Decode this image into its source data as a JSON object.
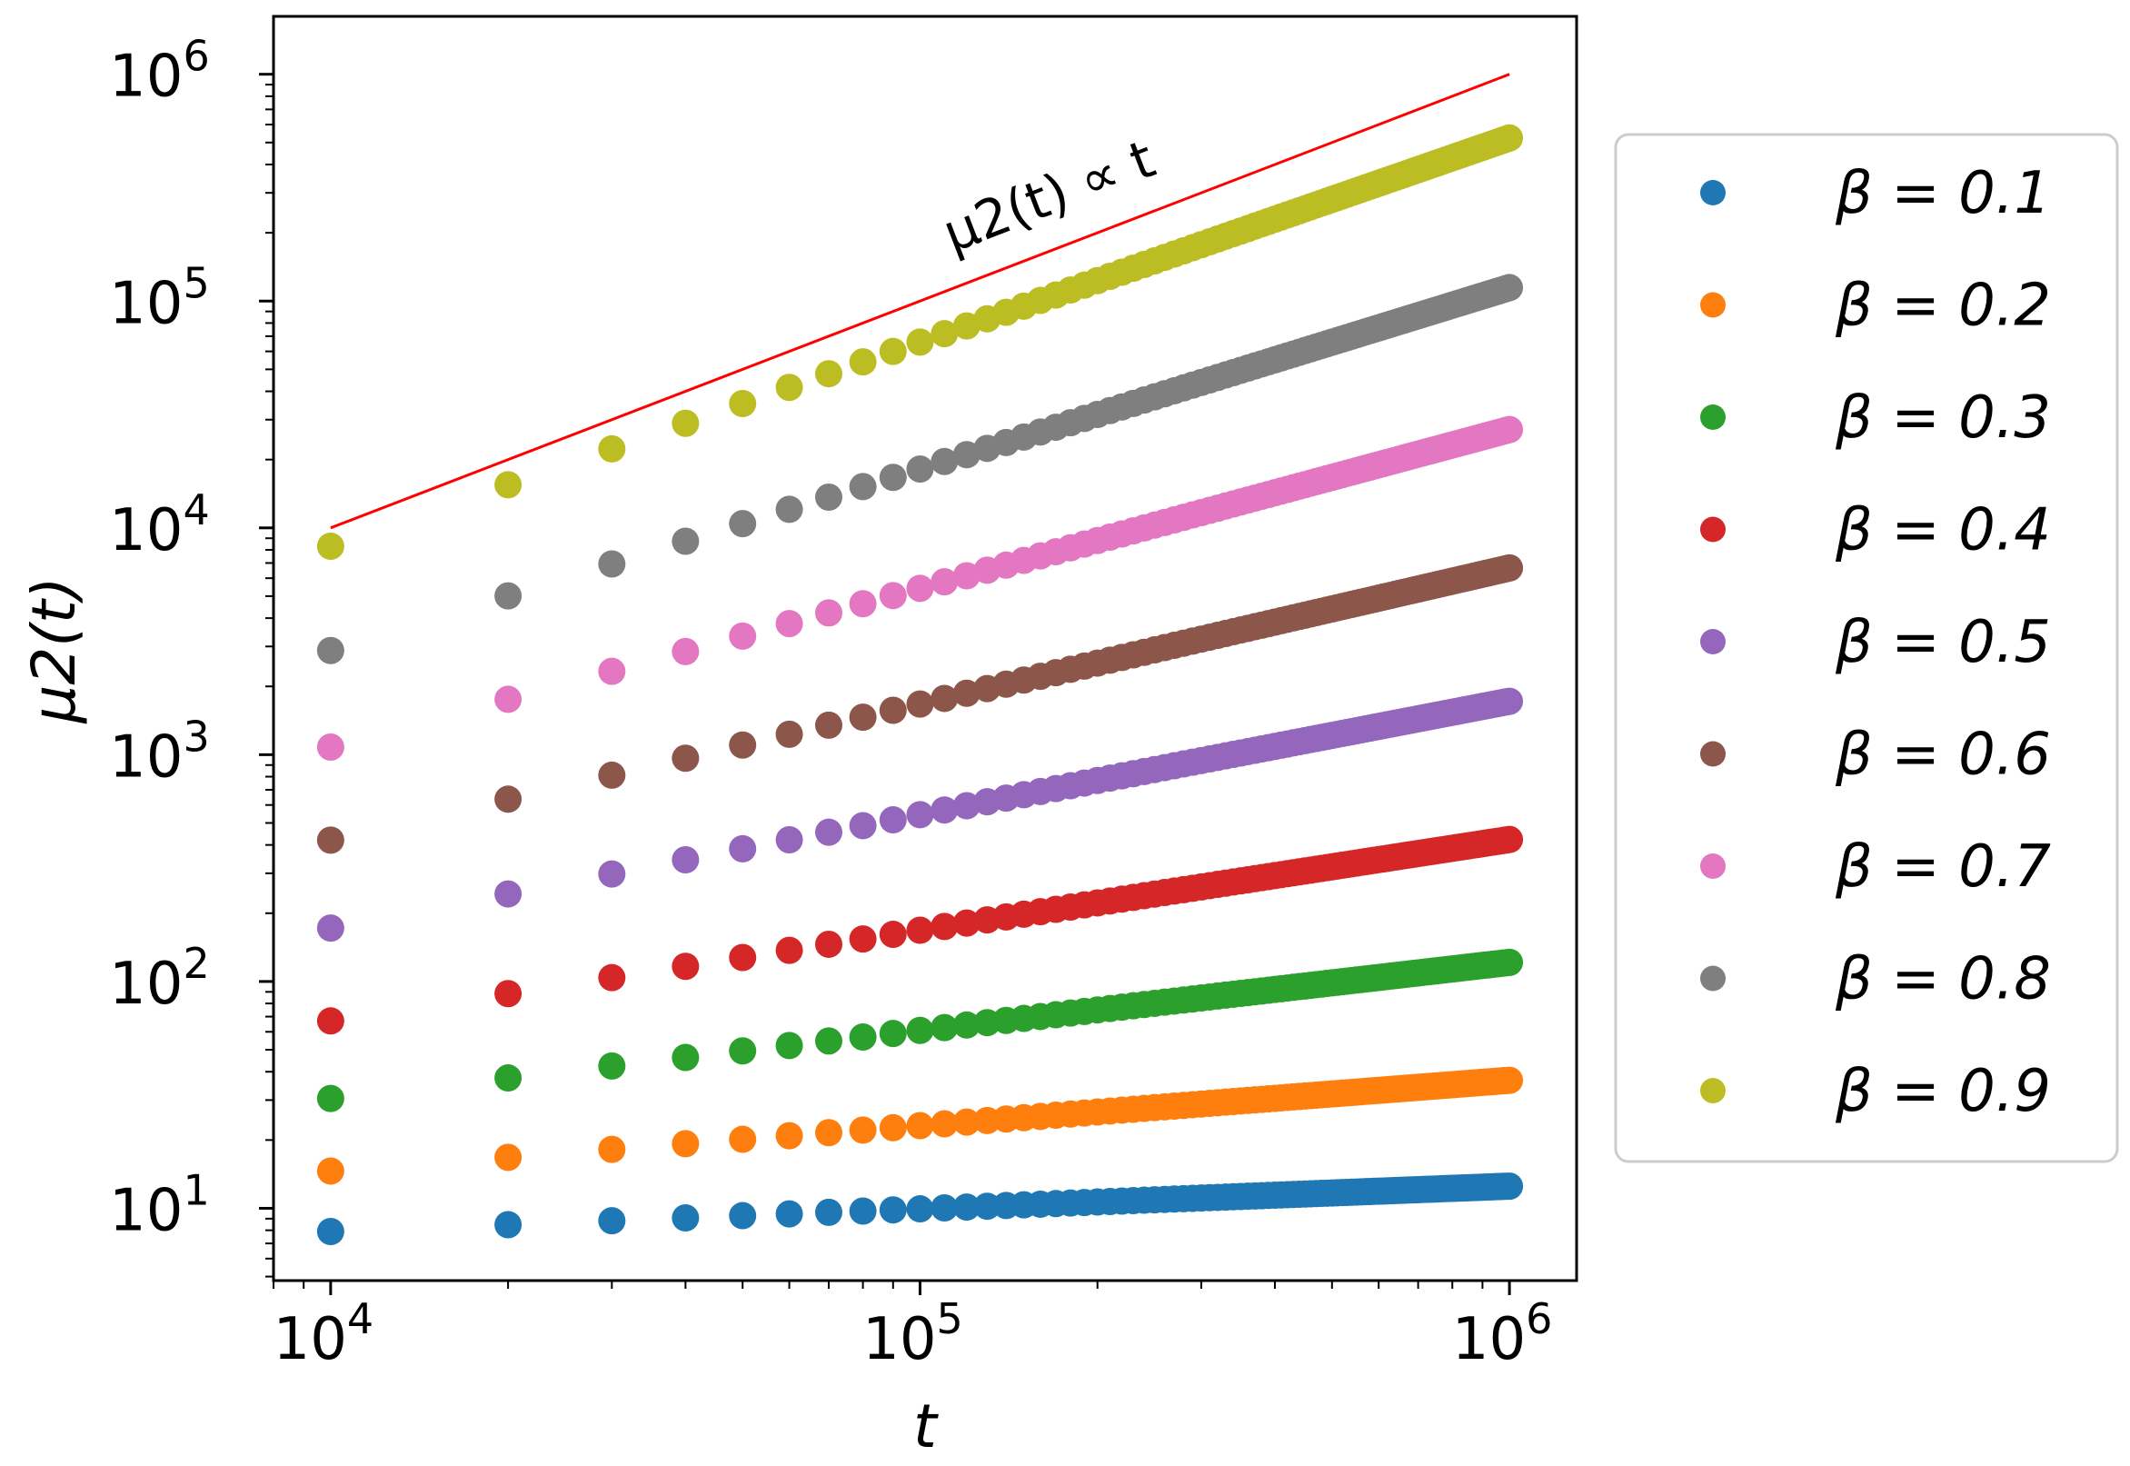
{
  "chart_data": {
    "type": "scatter",
    "title": "",
    "xlabel": "t",
    "ylabel": "μ2(t)",
    "xscale": "log",
    "yscale": "log",
    "xlim": [
      8000,
      1300000
    ],
    "ylim": [
      4.8,
      1800000
    ],
    "xticks": [
      {
        "value": 10000,
        "base": "10",
        "exp": "4"
      },
      {
        "value": 100000,
        "base": "10",
        "exp": "5"
      },
      {
        "value": 1000000,
        "base": "10",
        "exp": "6"
      }
    ],
    "yticks": [
      {
        "value": 10,
        "base": "10",
        "exp": "1"
      },
      {
        "value": 100,
        "base": "10",
        "exp": "2"
      },
      {
        "value": 1000,
        "base": "10",
        "exp": "3"
      },
      {
        "value": 10000,
        "base": "10",
        "exp": "4"
      },
      {
        "value": 100000,
        "base": "10",
        "exp": "5"
      },
      {
        "value": 1000000,
        "base": "10",
        "exp": "6"
      }
    ],
    "x": {
      "start": 10000,
      "step": 10000,
      "end": 1000000
    },
    "reference_line": {
      "label": "μ2(t) ∝ t",
      "color": "#ff0000",
      "points": [
        [
          10000,
          10000
        ],
        [
          1000000,
          1000000
        ]
      ]
    },
    "legend_position": "right",
    "series": [
      {
        "name": "β = 0.1",
        "beta": "0.1",
        "color": "#1f77b4",
        "exponent": 0.1,
        "v0": 7.9
      },
      {
        "name": "β = 0.2",
        "beta": "0.2",
        "color": "#ff7f0e",
        "exponent": 0.2,
        "v0": 14.6
      },
      {
        "name": "β = 0.3",
        "beta": "0.3",
        "color": "#2ca02c",
        "exponent": 0.3,
        "v0": 30.5
      },
      {
        "name": "β = 0.4",
        "beta": "0.4",
        "color": "#d62728",
        "exponent": 0.4,
        "v0": 67
      },
      {
        "name": "β = 0.5",
        "beta": "0.5",
        "color": "#9467bd",
        "exponent": 0.5,
        "v0": 172
      },
      {
        "name": "β = 0.6",
        "beta": "0.6",
        "color": "#8c564b",
        "exponent": 0.6,
        "v0": 420
      },
      {
        "name": "β = 0.7",
        "beta": "0.7",
        "color": "#e377c2",
        "exponent": 0.7,
        "v0": 1080
      },
      {
        "name": "β = 0.8",
        "beta": "0.8",
        "color": "#7f7f7f",
        "exponent": 0.8,
        "v0": 2880
      },
      {
        "name": "β = 0.9",
        "beta": "0.9",
        "color": "#bcbd22",
        "exponent": 0.9,
        "v0": 8300
      }
    ]
  }
}
